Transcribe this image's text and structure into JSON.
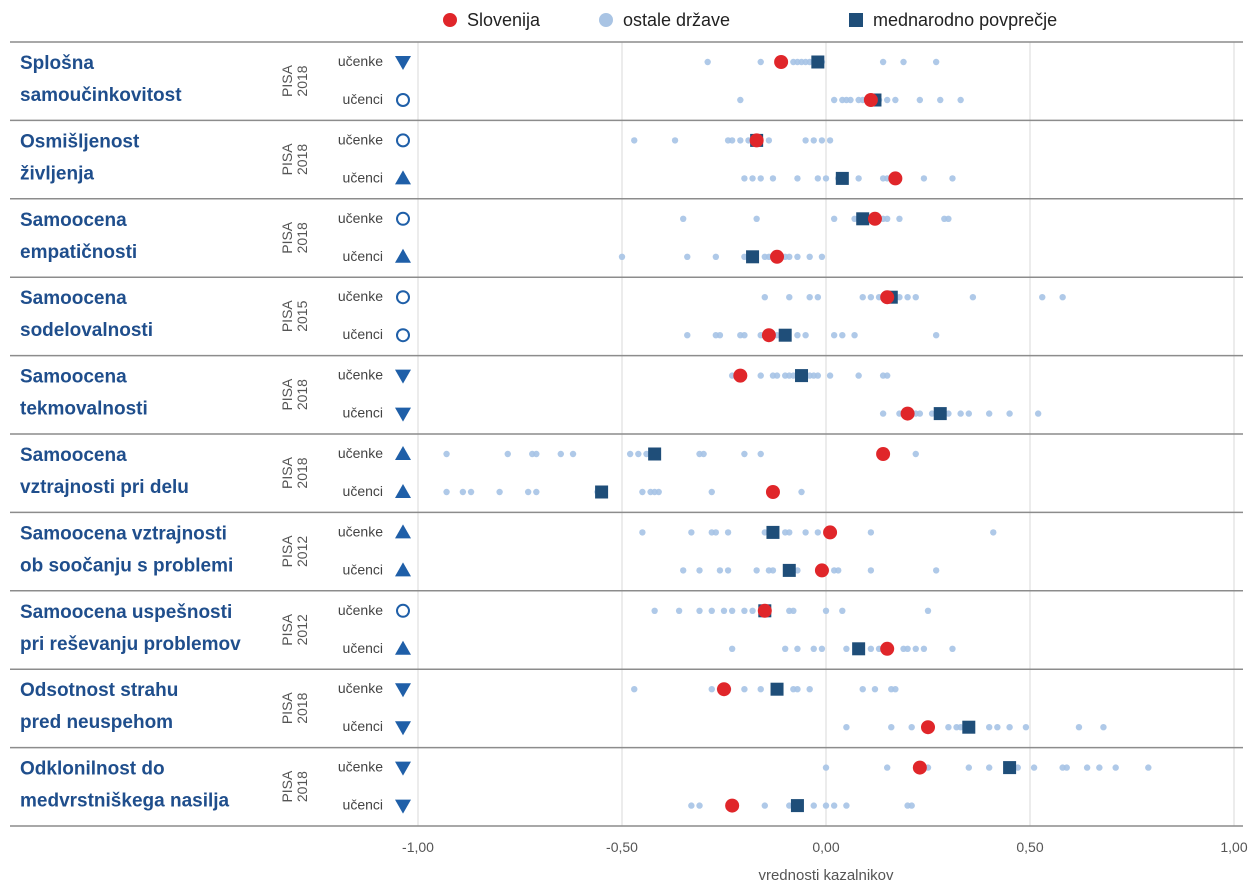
{
  "chart_data": {
    "type": "scatter",
    "xlabel": "vrednosti kazalnikov",
    "xlim": [
      -1.0,
      1.0
    ],
    "xticks": [
      -1.0,
      -0.5,
      0.0,
      0.5,
      1.0
    ],
    "xtick_labels": [
      "-1,00",
      "-0,50",
      "0,00",
      "0,50",
      "1,00"
    ],
    "grid": "vertical",
    "legend": {
      "placement": "top",
      "items": [
        {
          "key": "slovenija",
          "label": "Slovenija",
          "color": "#e0262a",
          "shape": "circle"
        },
        {
          "key": "ostale",
          "label": "ostale države",
          "color": "#a9c4e4",
          "shape": "circle"
        },
        {
          "key": "povprecje",
          "label": "mednarodno povprečje",
          "color": "#1f4e79",
          "shape": "square"
        }
      ]
    },
    "colors": {
      "slovenija": "#e0262a",
      "ostale": "#a6c3e6",
      "povprecje": "#1f4e79",
      "marker": "#1f5fa8",
      "title": "#1f4e8c"
    },
    "groups": [
      {
        "title": [
          "Splošna",
          "samoučinkovitost"
        ],
        "pisa": [
          "PISA",
          "2018"
        ],
        "rows": [
          {
            "label": "učenke",
            "marker": "triangle-down",
            "si": -0.11,
            "avg": -0.02,
            "others": [
              -0.29,
              -0.16,
              -0.08,
              -0.07,
              -0.06,
              -0.05,
              -0.04,
              -0.03,
              -0.01,
              0.14,
              0.19,
              0.27
            ]
          },
          {
            "label": "učenci",
            "marker": "circle-open",
            "si": 0.11,
            "avg": 0.12,
            "others": [
              -0.21,
              0.02,
              0.04,
              0.05,
              0.06,
              0.08,
              0.09,
              0.1,
              0.13,
              0.15,
              0.17,
              0.23,
              0.28,
              0.33
            ]
          }
        ]
      },
      {
        "title": [
          "Osmišljenost",
          "življenja"
        ],
        "pisa": [
          "PISA",
          "2018"
        ],
        "rows": [
          {
            "label": "učenke",
            "marker": "circle-open",
            "si": -0.17,
            "avg": -0.17,
            "others": [
              -0.47,
              -0.37,
              -0.24,
              -0.23,
              -0.21,
              -0.19,
              -0.14,
              -0.05,
              -0.03,
              -0.01,
              0.01
            ]
          },
          {
            "label": "učenci",
            "marker": "triangle-up",
            "si": 0.17,
            "avg": 0.04,
            "others": [
              -0.2,
              -0.18,
              -0.16,
              -0.13,
              -0.07,
              -0.02,
              0.0,
              0.03,
              0.08,
              0.14,
              0.15,
              0.24,
              0.31
            ]
          }
        ]
      },
      {
        "title": [
          "Samoocena",
          "empatičnosti"
        ],
        "pisa": [
          "PISA",
          "2018"
        ],
        "rows": [
          {
            "label": "učenke",
            "marker": "circle-open",
            "si": 0.12,
            "avg": 0.09,
            "others": [
              -0.35,
              -0.17,
              0.02,
              0.07,
              0.1,
              0.11,
              0.14,
              0.15,
              0.18,
              0.29,
              0.3
            ]
          },
          {
            "label": "učenci",
            "marker": "triangle-up",
            "si": -0.12,
            "avg": -0.18,
            "others": [
              -0.5,
              -0.34,
              -0.27,
              -0.2,
              -0.15,
              -0.14,
              -0.1,
              -0.09,
              -0.07,
              -0.04,
              -0.01
            ]
          }
        ]
      },
      {
        "title": [
          "Samoocena",
          "sodelovalnosti"
        ],
        "pisa": [
          "PISA",
          "2015"
        ],
        "rows": [
          {
            "label": "učenke",
            "marker": "circle-open",
            "si": 0.15,
            "avg": 0.16,
            "others": [
              -0.15,
              -0.09,
              -0.04,
              -0.02,
              0.09,
              0.11,
              0.13,
              0.18,
              0.2,
              0.22,
              0.36,
              0.53,
              0.58
            ]
          },
          {
            "label": "učenci",
            "marker": "circle-open",
            "si": -0.14,
            "avg": -0.1,
            "others": [
              -0.34,
              -0.27,
              -0.26,
              -0.21,
              -0.2,
              -0.16,
              -0.12,
              -0.07,
              -0.05,
              0.02,
              0.04,
              0.07,
              0.27
            ]
          }
        ]
      },
      {
        "title": [
          "Samoocena",
          "tekmovalnosti"
        ],
        "pisa": [
          "PISA",
          "2018"
        ],
        "rows": [
          {
            "label": "učenke",
            "marker": "triangle-down",
            "si": -0.21,
            "avg": -0.06,
            "others": [
              -0.23,
              -0.16,
              -0.13,
              -0.12,
              -0.1,
              -0.09,
              -0.08,
              -0.04,
              -0.03,
              -0.02,
              0.01,
              0.08,
              0.14,
              0.15
            ]
          },
          {
            "label": "učenci",
            "marker": "triangle-down",
            "si": 0.2,
            "avg": 0.28,
            "others": [
              0.14,
              0.18,
              0.21,
              0.22,
              0.23,
              0.26,
              0.3,
              0.33,
              0.35,
              0.4,
              0.45,
              0.52
            ]
          }
        ]
      },
      {
        "title": [
          "Samoocena",
          "vztrajnosti pri delu"
        ],
        "pisa": [
          "PISA",
          "2018"
        ],
        "rows": [
          {
            "label": "učenke",
            "marker": "triangle-up",
            "si": 0.14,
            "avg": -0.42,
            "others": [
              -0.93,
              -0.78,
              -0.72,
              -0.71,
              -0.65,
              -0.62,
              -0.48,
              -0.46,
              -0.44,
              -0.31,
              -0.3,
              -0.2,
              -0.16,
              0.22
            ]
          },
          {
            "label": "učenci",
            "marker": "triangle-up",
            "si": -0.13,
            "avg": -0.55,
            "others": [
              -0.93,
              -0.89,
              -0.87,
              -0.8,
              -0.73,
              -0.71,
              -0.56,
              -0.45,
              -0.43,
              -0.42,
              -0.41,
              -0.28,
              -0.06
            ]
          }
        ]
      },
      {
        "title": [
          "Samoocena vztrajnosti",
          "ob soočanju s problemi"
        ],
        "pisa": [
          "PISA",
          "2012"
        ],
        "rows": [
          {
            "label": "učenke",
            "marker": "triangle-up",
            "si": 0.01,
            "avg": -0.13,
            "others": [
              -0.45,
              -0.33,
              -0.28,
              -0.27,
              -0.24,
              -0.15,
              -0.1,
              -0.09,
              -0.05,
              -0.02,
              0.11,
              0.41
            ]
          },
          {
            "label": "učenci",
            "marker": "triangle-up",
            "si": -0.01,
            "avg": -0.09,
            "others": [
              -0.35,
              -0.31,
              -0.26,
              -0.24,
              -0.17,
              -0.14,
              -0.13,
              -0.07,
              0.0,
              0.02,
              0.03,
              0.11,
              0.27
            ]
          }
        ]
      },
      {
        "title": [
          "Samoocena uspešnosti",
          "pri reševanju problemov"
        ],
        "pisa": [
          "PISA",
          "2012"
        ],
        "rows": [
          {
            "label": "učenke",
            "marker": "circle-open",
            "si": -0.15,
            "avg": -0.15,
            "others": [
              -0.42,
              -0.36,
              -0.31,
              -0.28,
              -0.25,
              -0.23,
              -0.2,
              -0.18,
              -0.09,
              -0.08,
              0.0,
              0.04,
              0.25
            ]
          },
          {
            "label": "učenci",
            "marker": "triangle-up",
            "si": 0.15,
            "avg": 0.08,
            "others": [
              -0.23,
              -0.1,
              -0.07,
              -0.03,
              -0.01,
              0.05,
              0.11,
              0.13,
              0.19,
              0.2,
              0.22,
              0.24,
              0.31
            ]
          }
        ]
      },
      {
        "title": [
          "Odsotnost strahu",
          "pred neuspehom"
        ],
        "pisa": [
          "PISA",
          "2018"
        ],
        "rows": [
          {
            "label": "učenke",
            "marker": "triangle-down",
            "si": -0.25,
            "avg": -0.12,
            "others": [
              -0.47,
              -0.28,
              -0.26,
              -0.24,
              -0.2,
              -0.16,
              -0.08,
              -0.07,
              -0.04,
              0.09,
              0.12,
              0.16,
              0.17
            ]
          },
          {
            "label": "učenci",
            "marker": "triangle-down",
            "si": 0.25,
            "avg": 0.35,
            "others": [
              0.05,
              0.16,
              0.21,
              0.3,
              0.32,
              0.33,
              0.4,
              0.42,
              0.45,
              0.49,
              0.62,
              0.68
            ]
          }
        ]
      },
      {
        "title": [
          "Odklonilnost do",
          "medvrstniškega nasilja"
        ],
        "pisa": [
          "PISA",
          "2018"
        ],
        "rows": [
          {
            "label": "učenke",
            "marker": "triangle-down",
            "si": 0.23,
            "avg": 0.45,
            "others": [
              0.0,
              0.15,
              0.25,
              0.35,
              0.4,
              0.47,
              0.51,
              0.58,
              0.59,
              0.64,
              0.67,
              0.71,
              0.79
            ]
          },
          {
            "label": "učenci",
            "marker": "triangle-down",
            "si": -0.23,
            "avg": -0.07,
            "others": [
              -0.33,
              -0.31,
              -0.15,
              -0.09,
              -0.08,
              -0.03,
              0.0,
              0.02,
              0.05,
              0.2,
              0.21
            ]
          }
        ]
      }
    ]
  }
}
